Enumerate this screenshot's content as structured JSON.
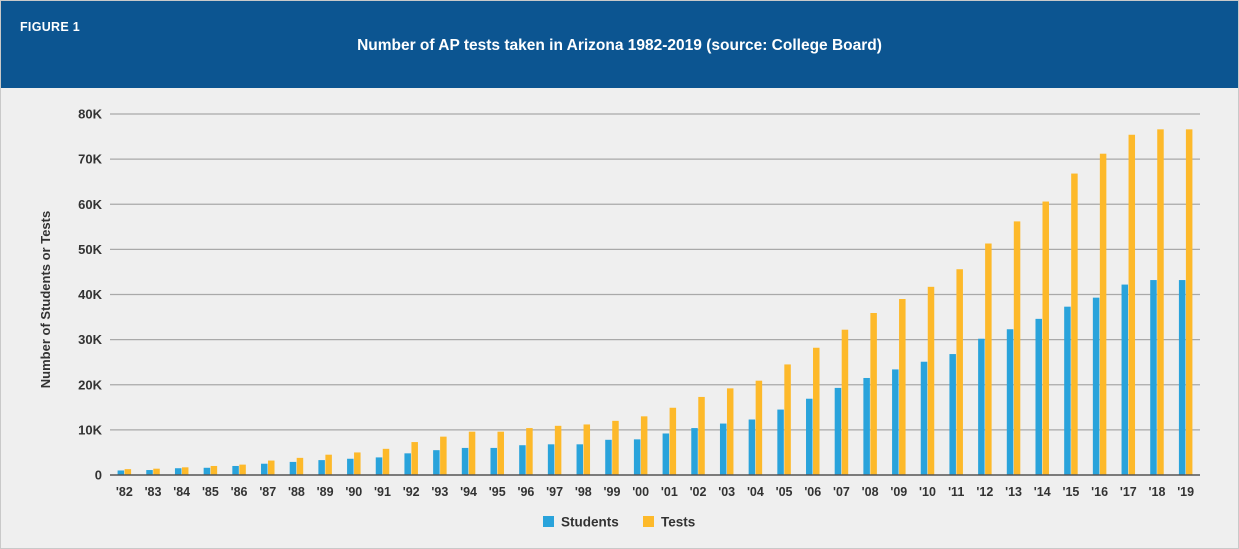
{
  "figure_label": "FIGURE 1",
  "title": "Number of AP tests taken in Arizona 1982-2019 (source: College Board)",
  "colors": {
    "header_bg": "#0c5591",
    "students": "#29a3db",
    "tests": "#fdb92a"
  },
  "chart_data": {
    "type": "bar",
    "title": "Number of AP tests taken in Arizona 1982-2019 (source: College Board)",
    "xlabel": "",
    "ylabel": "Number of Students or Tests",
    "ylim": [
      0,
      80000
    ],
    "yticks": [
      0,
      10000,
      20000,
      30000,
      40000,
      50000,
      60000,
      70000,
      80000
    ],
    "ytick_labels": [
      "0",
      "10K",
      "20K",
      "30K",
      "40K",
      "50K",
      "60K",
      "70K",
      "80K"
    ],
    "grid": true,
    "legend_position": "bottom-center",
    "categories": [
      "'82",
      "'83",
      "'84",
      "'85",
      "'86",
      "'87",
      "'88",
      "'89",
      "'90",
      "'91",
      "'92",
      "'93",
      "'94",
      "'95",
      "'96",
      "'97",
      "'98",
      "'99",
      "'00",
      "'01",
      "'02",
      "'03",
      "'04",
      "'05",
      "'06",
      "'07",
      "'08",
      "'09",
      "'10",
      "'11",
      "'12",
      "'13",
      "'14",
      "'15",
      "'16",
      "'17",
      "'18",
      "'19"
    ],
    "series": [
      {
        "name": "Students",
        "values": [
          1000,
          1100,
          1500,
          1600,
          2000,
          2500,
          2900,
          3300,
          3600,
          3900,
          4800,
          5500,
          6000,
          6000,
          6600,
          6800,
          6800,
          7800,
          7900,
          9200,
          10400,
          11400,
          12300,
          14500,
          16900,
          19300,
          21500,
          23400,
          25100,
          26800,
          30200,
          32300,
          34600,
          37300,
          39300,
          42200,
          43200,
          43200
        ]
      },
      {
        "name": "Tests",
        "values": [
          1300,
          1400,
          1700,
          2000,
          2300,
          3200,
          3800,
          4500,
          5000,
          5800,
          7300,
          8500,
          9600,
          9600,
          10400,
          10900,
          11200,
          12000,
          13000,
          14900,
          17300,
          19200,
          20900,
          24500,
          28200,
          32200,
          35900,
          39000,
          41700,
          45600,
          51300,
          56200,
          60600,
          66800,
          71200,
          75400,
          76600,
          76600
        ]
      }
    ]
  }
}
